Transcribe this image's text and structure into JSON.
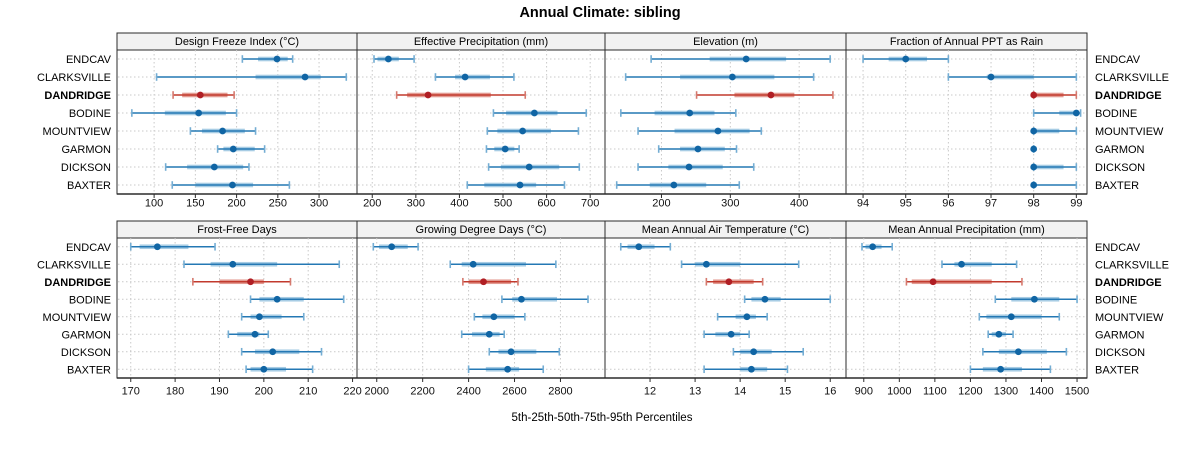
{
  "title": "Annual Climate: sibling",
  "caption": "5th-25th-50th-75th-95th Percentiles",
  "sites": [
    "ENDCAV",
    "CLARKSVILLE",
    "DANDRIDGE",
    "BODINE",
    "MOUNTVIEW",
    "GARMON",
    "DICKSON",
    "BAXTER"
  ],
  "highlight_site": "DANDRIDGE",
  "colors": {
    "normal": {
      "dot": "#1065A4",
      "line": "#2478B4",
      "cap": "#74ADD3",
      "band": "#A7CCE4"
    },
    "highlight": {
      "dot": "#B01E24",
      "line": "#C23A2D",
      "cap": "#D5796E",
      "band": "#E39B92"
    },
    "grid": "#C9C9C9",
    "border": "#2B2B2B",
    "header_bg": "#F2F2F2",
    "text": "#000000"
  },
  "chart_data": {
    "type": "scatter",
    "subtype": "trellis-percentile-dotplot",
    "layout": "2 rows x 4 cols",
    "grid": "dotted",
    "legend_position": "none",
    "percentiles": [
      5,
      25,
      50,
      75,
      95
    ],
    "categories": [
      "ENDCAV",
      "CLARKSVILLE",
      "DANDRIDGE",
      "BODINE",
      "MOUNTVIEW",
      "GARMON",
      "DICKSON",
      "BAXTER"
    ],
    "panels": [
      {
        "title": "Design Freeze Index (°C)",
        "xlim": [
          55,
          346
        ],
        "ticks": [
          100,
          150,
          200,
          250,
          300
        ],
        "values": [
          [
            207,
            226,
            249,
            262,
            268
          ],
          [
            103,
            223,
            283,
            302,
            333
          ],
          [
            123,
            134,
            156,
            189,
            197
          ],
          [
            73,
            113,
            154,
            187,
            200
          ],
          [
            144,
            158,
            183,
            210,
            223
          ],
          [
            177,
            184,
            196,
            222,
            234
          ],
          [
            114,
            140,
            173,
            208,
            215
          ],
          [
            122,
            150,
            195,
            220,
            264
          ]
        ]
      },
      {
        "title": "Effective Precipitation (mm)",
        "xlim": [
          165,
          734
        ],
        "ticks": [
          200,
          300,
          400,
          500,
          600,
          700
        ],
        "values": [
          [
            204,
            212,
            237,
            261,
            296
          ],
          [
            345,
            390,
            413,
            470,
            525
          ],
          [
            256,
            280,
            328,
            472,
            551
          ],
          [
            478,
            507,
            572,
            625,
            691
          ],
          [
            464,
            487,
            545,
            610,
            673
          ],
          [
            462,
            480,
            505,
            526,
            537
          ],
          [
            467,
            495,
            560,
            629,
            675
          ],
          [
            418,
            457,
            539,
            576,
            641
          ]
        ]
      },
      {
        "title": "Elevation (m)",
        "xlim": [
          118,
          468
        ],
        "ticks": [
          200,
          300,
          400
        ],
        "values": [
          [
            185,
            270,
            323,
            381,
            445
          ],
          [
            148,
            227,
            303,
            364,
            421
          ],
          [
            251,
            306,
            359,
            393,
            449
          ],
          [
            141,
            190,
            241,
            277,
            308
          ],
          [
            166,
            219,
            282,
            328,
            345
          ],
          [
            196,
            227,
            253,
            292,
            309
          ],
          [
            166,
            210,
            240,
            289,
            334
          ],
          [
            135,
            183,
            218,
            265,
            313
          ]
        ]
      },
      {
        "title": "Fraction of Annual PPT as Rain",
        "xlim": [
          93.6,
          99.25
        ],
        "ticks": [
          94,
          95,
          96,
          97,
          98,
          99
        ],
        "values": [
          [
            94.0,
            94.6,
            95.0,
            95.5,
            96.0
          ],
          [
            96.0,
            96.9,
            97.0,
            98.0,
            99.0
          ],
          [
            98.0,
            98.0,
            98.0,
            98.7,
            99.0
          ],
          [
            98.0,
            98.6,
            99.0,
            99.0,
            99.1
          ],
          [
            98.0,
            98.0,
            98.0,
            98.6,
            99.0
          ],
          [
            98.0,
            98.0,
            98.0,
            98.0,
            98.0
          ],
          [
            98.0,
            98.0,
            98.0,
            98.7,
            99.0
          ],
          [
            98.0,
            98.0,
            98.0,
            98.0,
            99.0
          ]
        ]
      },
      {
        "title": "Frost-Free Days",
        "xlim": [
          166.9,
          221
        ],
        "ticks": [
          170,
          180,
          190,
          200,
          210,
          220
        ],
        "values": [
          [
            170,
            172,
            176,
            183,
            189
          ],
          [
            182,
            188,
            193,
            203,
            217
          ],
          [
            184,
            190,
            197,
            200,
            206
          ],
          [
            197,
            199,
            203,
            209,
            218
          ],
          [
            195,
            197,
            199,
            204,
            209
          ],
          [
            192,
            194,
            198,
            199,
            201
          ],
          [
            195,
            198,
            202,
            208,
            213
          ],
          [
            196,
            197,
            200,
            205,
            211
          ]
        ]
      },
      {
        "title": "Growing Degree Days (°C)",
        "xlim": [
          1914,
          2994
        ],
        "ticks": [
          2000,
          2200,
          2400,
          2600,
          2800
        ],
        "values": [
          [
            1985,
            2010,
            2065,
            2135,
            2180
          ],
          [
            2320,
            2370,
            2420,
            2650,
            2780
          ],
          [
            2375,
            2400,
            2465,
            2585,
            2615
          ],
          [
            2545,
            2590,
            2630,
            2785,
            2920
          ],
          [
            2425,
            2460,
            2510,
            2600,
            2645
          ],
          [
            2370,
            2415,
            2490,
            2535,
            2555
          ],
          [
            2490,
            2530,
            2585,
            2695,
            2795
          ],
          [
            2400,
            2475,
            2570,
            2620,
            2725
          ]
        ]
      },
      {
        "title": "Mean Annual Air Temperature (°C)",
        "xlim": [
          11.0,
          16.35
        ],
        "ticks": [
          12,
          13,
          14,
          15,
          16
        ],
        "values": [
          [
            11.35,
            11.5,
            11.75,
            12.1,
            12.45
          ],
          [
            12.7,
            13.0,
            13.25,
            14.0,
            15.3
          ],
          [
            13.25,
            13.4,
            13.75,
            14.3,
            14.5
          ],
          [
            14.1,
            14.25,
            14.55,
            14.9,
            16.0
          ],
          [
            13.5,
            13.9,
            14.15,
            14.35,
            14.6
          ],
          [
            13.2,
            13.45,
            13.8,
            14.0,
            14.2
          ],
          [
            13.85,
            14.0,
            14.3,
            14.7,
            15.4
          ],
          [
            13.2,
            14.0,
            14.25,
            14.6,
            15.05
          ]
        ]
      },
      {
        "title": "Mean Annual Precipitation (mm)",
        "xlim": [
          850,
          1528
        ],
        "ticks": [
          900,
          1000,
          1100,
          1200,
          1300,
          1400,
          1500
        ],
        "values": [
          [
            895,
            905,
            925,
            950,
            980
          ],
          [
            1120,
            1155,
            1175,
            1260,
            1330
          ],
          [
            1020,
            1035,
            1095,
            1260,
            1345
          ],
          [
            1270,
            1315,
            1380,
            1450,
            1500
          ],
          [
            1225,
            1245,
            1315,
            1400,
            1450
          ],
          [
            1250,
            1260,
            1280,
            1300,
            1320
          ],
          [
            1235,
            1280,
            1335,
            1415,
            1470
          ],
          [
            1200,
            1235,
            1285,
            1345,
            1425
          ]
        ]
      }
    ]
  }
}
